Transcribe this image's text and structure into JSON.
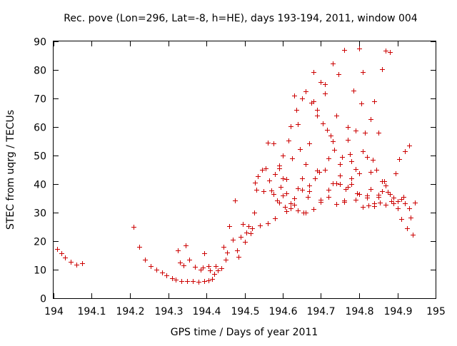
{
  "chart_data": {
    "type": "scatter",
    "title": "Rec. pove (Lon=296, Lat=-8, h=HE), days 193-194, 2011, window 004",
    "xlabel": "GPS time / Days of year 2011",
    "ylabel": "STEC from uqrg / TECUs",
    "xlim": [
      194,
      195
    ],
    "ylim": [
      0,
      90
    ],
    "x_ticks": [
      "194",
      "194.1",
      "194.2",
      "194.3",
      "194.4",
      "194.5",
      "194.6",
      "194.7",
      "194.8",
      "194.9",
      "195"
    ],
    "y_ticks": [
      "0",
      "10",
      "20",
      "30",
      "40",
      "50",
      "60",
      "70",
      "80",
      "90"
    ],
    "grid": false,
    "marker": "+",
    "color": "#cc0000",
    "series": [
      {
        "name": "STEC",
        "points": [
          [
            194.01,
            17.2
          ],
          [
            194.02,
            15.8
          ],
          [
            194.03,
            14.3
          ],
          [
            194.045,
            12.7
          ],
          [
            194.06,
            11.8
          ],
          [
            194.075,
            12.2
          ],
          [
            194.21,
            25.0
          ],
          [
            194.225,
            17.9
          ],
          [
            194.24,
            13.4
          ],
          [
            194.255,
            11.2
          ],
          [
            194.27,
            10.0
          ],
          [
            194.285,
            9.0
          ],
          [
            194.295,
            7.9
          ],
          [
            194.31,
            7.0
          ],
          [
            194.32,
            6.5
          ],
          [
            194.335,
            6.1
          ],
          [
            194.35,
            6.0
          ],
          [
            194.365,
            6.0
          ],
          [
            194.38,
            5.8
          ],
          [
            194.395,
            5.9
          ],
          [
            194.405,
            6.3
          ],
          [
            194.415,
            6.7
          ],
          [
            194.325,
            16.7
          ],
          [
            194.345,
            18.4
          ],
          [
            194.33,
            12.5
          ],
          [
            194.34,
            11.6
          ],
          [
            194.355,
            13.4
          ],
          [
            194.37,
            10.9
          ],
          [
            194.385,
            9.9
          ],
          [
            194.39,
            10.8
          ],
          [
            194.395,
            15.8
          ],
          [
            194.405,
            11.3
          ],
          [
            194.41,
            9.7
          ],
          [
            194.42,
            8.6
          ],
          [
            194.425,
            11.3
          ],
          [
            194.43,
            9.7
          ],
          [
            194.44,
            10.5
          ],
          [
            194.445,
            17.9
          ],
          [
            194.45,
            13.4
          ],
          [
            194.455,
            15.9
          ],
          [
            194.46,
            25.3
          ],
          [
            194.47,
            20.6
          ],
          [
            194.475,
            34.2
          ],
          [
            194.48,
            16.8
          ],
          [
            194.485,
            14.6
          ],
          [
            194.49,
            21.5
          ],
          [
            194.495,
            25.9
          ],
          [
            194.5,
            19.7
          ],
          [
            194.505,
            23.1
          ],
          [
            194.51,
            25.3
          ],
          [
            194.515,
            22.7
          ],
          [
            194.52,
            24.6
          ],
          [
            194.525,
            29.9
          ],
          [
            194.527,
            40.5
          ],
          [
            194.53,
            38.1
          ],
          [
            194.535,
            42.8
          ],
          [
            194.54,
            25.6
          ],
          [
            194.545,
            44.9
          ],
          [
            194.55,
            37.4
          ],
          [
            194.555,
            45.4
          ],
          [
            194.56,
            26.3
          ],
          [
            194.565,
            41.3
          ],
          [
            194.57,
            37.8
          ],
          [
            194.575,
            36.5
          ],
          [
            194.58,
            43.6
          ],
          [
            194.585,
            34.2
          ],
          [
            194.59,
            45.5
          ],
          [
            194.595,
            38.9
          ],
          [
            194.6,
            49.9
          ],
          [
            194.605,
            32.0
          ],
          [
            194.61,
            41.8
          ],
          [
            194.615,
            55.3
          ],
          [
            194.62,
            60.2
          ],
          [
            194.625,
            49.0
          ],
          [
            194.63,
            32.8
          ],
          [
            194.635,
            65.9
          ],
          [
            194.64,
            38.5
          ],
          [
            194.645,
            52.3
          ],
          [
            194.65,
            70.0
          ],
          [
            194.655,
            30.0
          ],
          [
            194.66,
            47.0
          ],
          [
            194.665,
            35.6
          ],
          [
            194.67,
            54.3
          ],
          [
            194.675,
            68.6
          ],
          [
            194.68,
            79.3
          ],
          [
            194.685,
            41.9
          ],
          [
            194.69,
            64.1
          ],
          [
            194.695,
            44.2
          ],
          [
            194.7,
            75.8
          ],
          [
            194.705,
            61.2
          ],
          [
            194.71,
            71.8
          ],
          [
            194.715,
            59.0
          ],
          [
            194.72,
            48.9
          ],
          [
            194.725,
            56.9
          ],
          [
            194.73,
            82.3
          ],
          [
            194.735,
            52.0
          ],
          [
            194.74,
            64.1
          ],
          [
            194.745,
            78.5
          ],
          [
            194.75,
            42.9
          ],
          [
            194.755,
            49.6
          ],
          [
            194.76,
            87.0
          ],
          [
            194.765,
            38.2
          ],
          [
            194.77,
            60.1
          ],
          [
            194.775,
            50.6
          ],
          [
            194.78,
            47.9
          ],
          [
            194.785,
            72.8
          ],
          [
            194.79,
            45.3
          ],
          [
            194.795,
            36.8
          ],
          [
            194.8,
            87.6
          ],
          [
            194.805,
            68.2
          ],
          [
            194.81,
            79.2
          ],
          [
            194.815,
            57.9
          ],
          [
            194.82,
            49.5
          ],
          [
            194.825,
            32.5
          ],
          [
            194.83,
            62.8
          ],
          [
            194.835,
            48.5
          ],
          [
            194.84,
            69.0
          ],
          [
            194.845,
            45.0
          ],
          [
            194.85,
            35.5
          ],
          [
            194.855,
            33.6
          ],
          [
            194.86,
            80.3
          ],
          [
            194.865,
            41.0
          ],
          [
            194.87,
            86.7
          ],
          [
            194.875,
            37.2
          ],
          [
            194.88,
            86.3
          ],
          [
            194.885,
            34.1
          ],
          [
            194.89,
            33.3
          ],
          [
            194.895,
            43.8
          ],
          [
            194.9,
            31.6
          ],
          [
            194.905,
            48.7
          ],
          [
            194.91,
            27.8
          ],
          [
            194.915,
            35.4
          ],
          [
            194.92,
            51.4
          ],
          [
            194.925,
            24.5
          ],
          [
            194.93,
            53.4
          ],
          [
            194.935,
            28.2
          ],
          [
            194.94,
            22.2
          ],
          [
            194.945,
            33.5
          ],
          [
            194.56,
            54.6
          ],
          [
            194.575,
            54.2
          ],
          [
            194.59,
            46.4
          ],
          [
            194.6,
            42.1
          ],
          [
            194.61,
            36.8
          ],
          [
            194.62,
            33.2
          ],
          [
            194.63,
            71.1
          ],
          [
            194.64,
            60.9
          ],
          [
            194.65,
            42.1
          ],
          [
            194.66,
            72.6
          ],
          [
            194.67,
            39.6
          ],
          [
            194.68,
            68.9
          ],
          [
            194.69,
            65.9
          ],
          [
            194.7,
            33.8
          ],
          [
            194.71,
            75.1
          ],
          [
            194.72,
            38.1
          ],
          [
            194.73,
            55.0
          ],
          [
            194.74,
            40.3
          ],
          [
            194.75,
            47.1
          ],
          [
            194.76,
            33.8
          ],
          [
            194.77,
            55.6
          ],
          [
            194.78,
            40.1
          ],
          [
            194.79,
            58.7
          ],
          [
            194.8,
            36.5
          ],
          [
            194.81,
            51.5
          ],
          [
            194.82,
            36.0
          ],
          [
            194.83,
            44.2
          ],
          [
            194.84,
            33.2
          ],
          [
            194.85,
            57.9
          ],
          [
            194.86,
            37.5
          ],
          [
            194.87,
            39.6
          ],
          [
            194.88,
            36.4
          ],
          [
            194.89,
            35.2
          ],
          [
            194.9,
            34.0
          ],
          [
            194.91,
            34.8
          ],
          [
            194.92,
            33.2
          ],
          [
            194.93,
            31.4
          ],
          [
            194.58,
            28.0
          ],
          [
            194.59,
            33.5
          ],
          [
            194.6,
            36.1
          ],
          [
            194.61,
            30.5
          ],
          [
            194.62,
            31.5
          ],
          [
            194.63,
            35.0
          ],
          [
            194.64,
            30.8
          ],
          [
            194.65,
            38.0
          ],
          [
            194.66,
            30.0
          ],
          [
            194.67,
            37.5
          ],
          [
            194.68,
            31.2
          ],
          [
            194.69,
            44.8
          ],
          [
            194.7,
            34.4
          ],
          [
            194.71,
            45.1
          ],
          [
            194.72,
            35.5
          ],
          [
            194.73,
            40.2
          ],
          [
            194.74,
            33.0
          ],
          [
            194.75,
            40.1
          ],
          [
            194.76,
            34.2
          ],
          [
            194.77,
            38.9
          ],
          [
            194.78,
            41.9
          ],
          [
            194.79,
            34.5
          ],
          [
            194.8,
            43.7
          ],
          [
            194.81,
            32.1
          ],
          [
            194.82,
            35.2
          ],
          [
            194.83,
            38.3
          ],
          [
            194.84,
            32.2
          ],
          [
            194.85,
            36.2
          ],
          [
            194.86,
            41.0
          ],
          [
            194.87,
            32.8
          ]
        ]
      }
    ]
  }
}
